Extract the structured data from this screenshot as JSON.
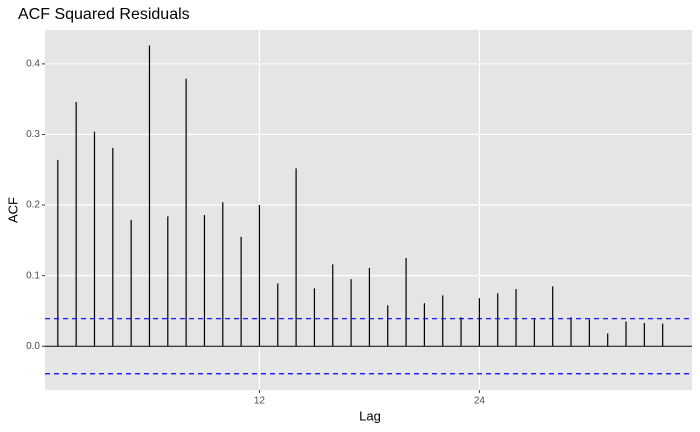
{
  "chart_data": {
    "type": "acf",
    "title": "ACF Squared Residuals",
    "x_label": "Lag",
    "y_label": "ACF",
    "x": [
      1,
      2,
      3,
      4,
      5,
      6,
      7,
      8,
      9,
      10,
      11,
      12,
      13,
      14,
      15,
      16,
      17,
      18,
      19,
      20,
      21,
      22,
      23,
      24,
      25,
      26,
      27,
      28,
      29,
      30,
      31,
      32,
      33,
      34
    ],
    "values": [
      0.264,
      0.346,
      0.304,
      0.281,
      0.179,
      0.426,
      0.184,
      0.379,
      0.186,
      0.204,
      0.155,
      0.2,
      0.089,
      0.252,
      0.082,
      0.116,
      0.095,
      0.111,
      0.058,
      0.125,
      0.061,
      0.072,
      0.041,
      0.068,
      0.075,
      0.081,
      0.039,
      0.085,
      0.041,
      0.038,
      0.018,
      0.035,
      0.033,
      0.032
    ],
    "color": "#000000",
    "ci": 0.039,
    "ci_color": "#0000ff",
    "xlim": [
      0.3,
      35.6
    ],
    "xticks": [
      12,
      24
    ],
    "ylim": [
      -0.062,
      0.448
    ],
    "yticks": [
      {
        "value": 0,
        "label": "0.0"
      },
      0.1,
      0.2,
      0.3,
      0.4
    ],
    "grid": true
  }
}
